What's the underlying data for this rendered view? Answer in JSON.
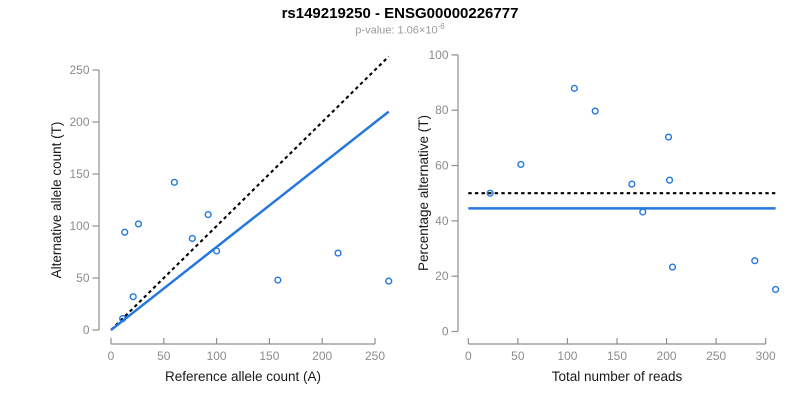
{
  "header": {
    "title": "rs149219250 - ENSG00000226777",
    "subtitle_prefix": "p-value: ",
    "subtitle_mantissa": "1.06×10",
    "subtitle_exponent": "-6"
  },
  "colors": {
    "accent_blue": "#2478df",
    "dashed_black": "#000000",
    "axis_gray": "#8f8f8f",
    "tick_gray": "#8c8c8c",
    "title_black": "#000000",
    "subtitle_gray": "#9b9b9b"
  },
  "chart_data": [
    {
      "type": "scatter",
      "name": "allele-counts-scatter",
      "xlabel": "Reference allele count (A)",
      "ylabel": "Alternative allele count (T)",
      "xticks": [
        0,
        50,
        100,
        150,
        200,
        250
      ],
      "yticks": [
        0,
        50,
        100,
        150,
        200,
        250
      ],
      "xlim": [
        0,
        265
      ],
      "ylim": [
        0,
        265
      ],
      "grid": false,
      "legend": "none",
      "points": [
        [
          11,
          11
        ],
        [
          13,
          94
        ],
        [
          21,
          32
        ],
        [
          26,
          102
        ],
        [
          60,
          142
        ],
        [
          77,
          88
        ],
        [
          92,
          111
        ],
        [
          100,
          76
        ],
        [
          158,
          48
        ],
        [
          215,
          74
        ],
        [
          263,
          47
        ]
      ],
      "lines": [
        {
          "name": "identity-line",
          "style": "dashed",
          "color": "#000000",
          "x1": 0,
          "y1": 0,
          "x2": 263,
          "y2": 263
        },
        {
          "name": "fit-line",
          "style": "solid",
          "color": "#2478df",
          "x1": 0,
          "y1": 0,
          "x2": 263,
          "y2": 210
        }
      ]
    },
    {
      "type": "scatter",
      "name": "percentage-vs-reads-scatter",
      "xlabel": "Total number of reads",
      "ylabel": "Percentage alternative (T)",
      "xticks": [
        0,
        50,
        100,
        150,
        200,
        250,
        300
      ],
      "yticks": [
        0,
        20,
        40,
        60,
        80,
        100
      ],
      "xlim": [
        0,
        312
      ],
      "ylim": [
        0,
        100
      ],
      "grid": false,
      "legend": "none",
      "points": [
        [
          22,
          50.0
        ],
        [
          53,
          60.4
        ],
        [
          107,
          87.9
        ],
        [
          128,
          79.7
        ],
        [
          165,
          53.3
        ],
        [
          176,
          43.2
        ],
        [
          202,
          70.3
        ],
        [
          203,
          54.7
        ],
        [
          206,
          23.3
        ],
        [
          289,
          25.6
        ],
        [
          310,
          15.2
        ]
      ],
      "lines": [
        {
          "name": "fifty-percent-line",
          "style": "dashed",
          "color": "#000000",
          "x1": 0,
          "y1": 50,
          "x2": 310,
          "y2": 50
        },
        {
          "name": "mean-percentage-line",
          "style": "solid",
          "color": "#2478df",
          "x1": 0,
          "y1": 44.5,
          "x2": 310,
          "y2": 44.5
        }
      ]
    }
  ]
}
